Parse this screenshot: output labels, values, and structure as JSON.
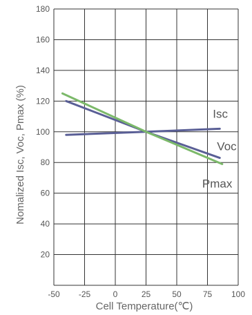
{
  "chart_data": {
    "type": "line",
    "xlabel": "Cell Temperature(℃)",
    "ylabel": "Nomalized Isc, Voc, Pmax (%)",
    "xlim": [
      -50,
      100
    ],
    "ylim": [
      0,
      180
    ],
    "xticks": [
      -50,
      -25,
      0,
      25,
      50,
      75,
      100
    ],
    "yticks": [
      20,
      40,
      60,
      80,
      100,
      120,
      140,
      160,
      180
    ],
    "grid": true,
    "series": [
      {
        "name": "Isc",
        "color": "#5a5f96",
        "x": [
          -40,
          25,
          85
        ],
        "y": [
          98,
          100,
          102
        ]
      },
      {
        "name": "Voc",
        "color": "#5a5f96",
        "x": [
          -40,
          25,
          85
        ],
        "y": [
          120,
          100,
          83
        ]
      },
      {
        "name": "Pmax",
        "color": "#7cb96a",
        "x": [
          -43,
          25,
          87
        ],
        "y": [
          125,
          100,
          79
        ]
      }
    ]
  }
}
